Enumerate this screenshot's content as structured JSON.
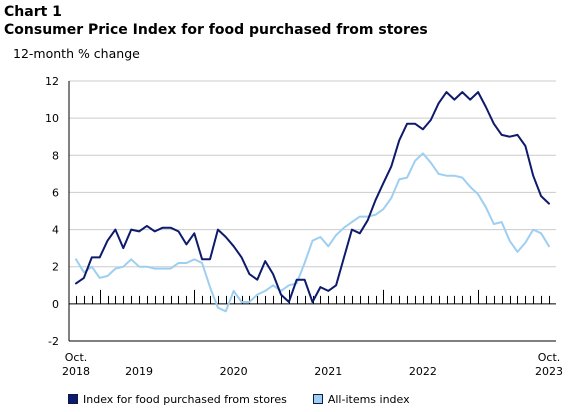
{
  "header": {
    "title": "Chart 1",
    "subtitle": "Consumer Price Index for food purchased from stores",
    "y_axis_label": "12-month % change"
  },
  "colors": {
    "food": "#0e1a6b",
    "all_items": "#9fcff0",
    "axis": "#000000",
    "grid": "#cccccc"
  },
  "legend": {
    "items": [
      {
        "label": "Index for food purchased from stores",
        "color": "#0e1a6b"
      },
      {
        "label": "All-items index",
        "color": "#9fcff0"
      }
    ]
  },
  "chart_data": {
    "type": "line",
    "ylim": [
      -2,
      12
    ],
    "yticks": [
      -2,
      0,
      2,
      4,
      6,
      8,
      10,
      12
    ],
    "grid": "horizontal",
    "legend_position": "bottom",
    "x_start": "2018-10",
    "x_end": "2023-10",
    "x_tick_labels": [
      {
        "month": "2018-10",
        "line1": "Oct.",
        "line2": "2018"
      },
      {
        "month": "2019-06",
        "line1": "",
        "line2": "2019"
      },
      {
        "month": "2020-06",
        "line1": "",
        "line2": "2020"
      },
      {
        "month": "2021-06",
        "line1": "",
        "line2": "2021"
      },
      {
        "month": "2022-06",
        "line1": "",
        "line2": "2022"
      },
      {
        "month": "2023-10",
        "line1": "Oct.",
        "line2": "2023"
      }
    ],
    "year_boundaries": [
      "2019-01",
      "2020-01",
      "2021-01",
      "2022-01",
      "2023-01"
    ],
    "series": [
      {
        "name": "Index for food purchased from stores",
        "color": "#0e1a6b",
        "values": [
          1.1,
          1.4,
          2.5,
          2.5,
          3.4,
          4.0,
          3.0,
          4.0,
          3.9,
          4.2,
          3.9,
          4.1,
          4.1,
          3.9,
          3.2,
          3.8,
          2.4,
          2.4,
          4.0,
          3.6,
          3.1,
          2.5,
          1.6,
          1.3,
          2.3,
          1.6,
          0.5,
          0.1,
          1.3,
          1.3,
          0.1,
          0.9,
          0.7,
          1.0,
          2.5,
          4.0,
          3.8,
          4.5,
          5.6,
          6.5,
          7.4,
          8.8,
          9.7,
          9.7,
          9.4,
          9.9,
          10.8,
          11.4,
          11.0,
          11.4,
          11.0,
          11.4,
          10.6,
          9.7,
          9.1,
          9.0,
          9.1,
          8.5,
          6.9,
          5.8,
          5.4
        ]
      },
      {
        "name": "All-items index",
        "color": "#9fcff0",
        "values": [
          2.4,
          1.7,
          2.0,
          1.4,
          1.5,
          1.9,
          2.0,
          2.4,
          2.0,
          2.0,
          1.9,
          1.9,
          1.9,
          2.2,
          2.2,
          2.4,
          2.2,
          0.9,
          -0.2,
          -0.4,
          0.7,
          0.1,
          0.1,
          0.5,
          0.7,
          1.0,
          0.7,
          1.0,
          1.1,
          2.2,
          3.4,
          3.6,
          3.1,
          3.7,
          4.1,
          4.4,
          4.7,
          4.7,
          4.8,
          5.1,
          5.7,
          6.7,
          6.8,
          7.7,
          8.1,
          7.6,
          7.0,
          6.9,
          6.9,
          6.8,
          6.3,
          5.9,
          5.2,
          4.3,
          4.4,
          3.4,
          2.8,
          3.3,
          4.0,
          3.8,
          3.1
        ]
      }
    ]
  }
}
